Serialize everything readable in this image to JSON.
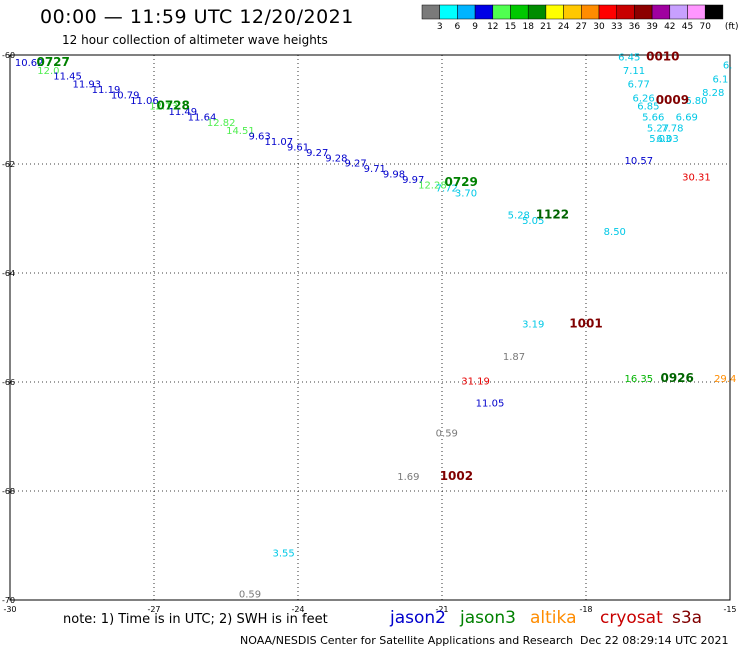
{
  "header": {
    "title": "00:00 — 11:59 UTC 12/20/2021",
    "subtitle": "12 hour collection of altimeter wave heights"
  },
  "colorbar": {
    "colors": [
      "#7a7a7a",
      "#00ffff",
      "#00b4ff",
      "#0000e6",
      "#50ff50",
      "#00c800",
      "#008c00",
      "#ffff00",
      "#ffc800",
      "#ff8c00",
      "#ff0000",
      "#c80000",
      "#8c0000",
      "#a000a0",
      "#c8a0ff",
      "#ff96ff",
      "#000000"
    ],
    "labels": [
      "3",
      "6",
      "9",
      "12",
      "15",
      "18",
      "21",
      "24",
      "27",
      "30",
      "33",
      "36",
      "39",
      "42",
      "45",
      "70"
    ],
    "unit": "(ft)"
  },
  "axes": {
    "lon_ticks": [
      "-30",
      "-27",
      "-24",
      "-21",
      "-18",
      "-15"
    ],
    "lat_ticks": [
      "-60",
      "-62",
      "-64",
      "-66",
      "-68",
      "-70"
    ]
  },
  "time_labels": [
    {
      "text": "0727",
      "color": "#008000",
      "lon": -29.1,
      "lat": -60.2
    },
    {
      "text": "0728",
      "color": "#008000",
      "lon": -26.6,
      "lat": -61.0
    },
    {
      "text": "0729",
      "color": "#008000",
      "lon": -20.6,
      "lat": -62.4
    },
    {
      "text": "1122",
      "color": "#006400",
      "lon": -18.7,
      "lat": -63.0
    },
    {
      "text": "0010",
      "color": "#800000",
      "lon": -16.4,
      "lat": -60.1
    },
    {
      "text": "0009",
      "color": "#800000",
      "lon": -16.2,
      "lat": -60.9
    },
    {
      "text": "1001",
      "color": "#800000",
      "lon": -18.0,
      "lat": -65.0
    },
    {
      "text": "0926",
      "color": "#006400",
      "lon": -16.1,
      "lat": -66.0
    },
    {
      "text": "1002",
      "color": "#800000",
      "lon": -20.7,
      "lat": -67.8
    }
  ],
  "swh_values": [
    {
      "text": "10.62",
      "color": "#0000cc",
      "lon": -29.6,
      "lat": -60.2
    },
    {
      "text": "12.0",
      "color": "#50ee50",
      "lon": -29.2,
      "lat": -60.35
    },
    {
      "text": "11.45",
      "color": "#0000cc",
      "lon": -28.8,
      "lat": -60.45
    },
    {
      "text": "11.93",
      "color": "#0000cc",
      "lon": -28.4,
      "lat": -60.6
    },
    {
      "text": "11.19",
      "color": "#0000cc",
      "lon": -28.0,
      "lat": -60.7
    },
    {
      "text": "10.79",
      "color": "#0000cc",
      "lon": -27.6,
      "lat": -60.8
    },
    {
      "text": "11.06",
      "color": "#0000cc",
      "lon": -27.2,
      "lat": -60.9
    },
    {
      "text": "12.13",
      "color": "#50ee50",
      "lon": -26.8,
      "lat": -61.0
    },
    {
      "text": "11.49",
      "color": "#0000cc",
      "lon": -26.4,
      "lat": -61.1
    },
    {
      "text": "11.64",
      "color": "#0000cc",
      "lon": -26.0,
      "lat": -61.2
    },
    {
      "text": "12.82",
      "color": "#50ee50",
      "lon": -25.6,
      "lat": -61.3
    },
    {
      "text": "14.51",
      "color": "#50ee50",
      "lon": -25.2,
      "lat": -61.45
    },
    {
      "text": "9.63",
      "color": "#0000cc",
      "lon": -24.8,
      "lat": -61.55
    },
    {
      "text": "11.07",
      "color": "#0000cc",
      "lon": -24.4,
      "lat": -61.65
    },
    {
      "text": "9.61",
      "color": "#0000cc",
      "lon": -24.0,
      "lat": -61.75
    },
    {
      "text": "9.27",
      "color": "#0000cc",
      "lon": -23.6,
      "lat": -61.85
    },
    {
      "text": "9.28",
      "color": "#0000cc",
      "lon": -23.2,
      "lat": -61.95
    },
    {
      "text": "9.27",
      "color": "#0000cc",
      "lon": -22.8,
      "lat": -62.05
    },
    {
      "text": "9.71",
      "color": "#0000cc",
      "lon": -22.4,
      "lat": -62.15
    },
    {
      "text": "9.98",
      "color": "#0000cc",
      "lon": -22.0,
      "lat": -62.25
    },
    {
      "text": "9.97",
      "color": "#0000cc",
      "lon": -21.6,
      "lat": -62.35
    },
    {
      "text": "12.28",
      "color": "#50ee50",
      "lon": -21.2,
      "lat": -62.45
    },
    {
      "text": "7.72",
      "color": "#00c8e6",
      "lon": -20.9,
      "lat": -62.5
    },
    {
      "text": "3.70",
      "color": "#00c8e6",
      "lon": -20.5,
      "lat": -62.6
    },
    {
      "text": "5.28",
      "color": "#00c8e6",
      "lon": -19.4,
      "lat": -63.0
    },
    {
      "text": "5.05",
      "color": "#00c8e6",
      "lon": -19.1,
      "lat": -63.1
    },
    {
      "text": "8.50",
      "color": "#00c8e6",
      "lon": -17.4,
      "lat": -63.3
    },
    {
      "text": "6.45",
      "color": "#00c8e6",
      "lon": -17.1,
      "lat": -60.1
    },
    {
      "text": "7.11",
      "color": "#00c8e6",
      "lon": -17.0,
      "lat": -60.35
    },
    {
      "text": "6.77",
      "color": "#00c8e6",
      "lon": -16.9,
      "lat": -60.6
    },
    {
      "text": "6.26",
      "color": "#00c8e6",
      "lon": -16.8,
      "lat": -60.85
    },
    {
      "text": "6.85",
      "color": "#00c8e6",
      "lon": -16.7,
      "lat": -61.0
    },
    {
      "text": "5.66",
      "color": "#00c8e6",
      "lon": -16.6,
      "lat": -61.2
    },
    {
      "text": "5.27",
      "color": "#00c8e6",
      "lon": -16.5,
      "lat": -61.4
    },
    {
      "text": "5.03",
      "color": "#00c8e6",
      "lon": -16.45,
      "lat": -61.6
    },
    {
      "text": "6.03",
      "color": "#00c8e6",
      "lon": -16.3,
      "lat": -61.6
    },
    {
      "text": "7.78",
      "color": "#00c8e6",
      "lon": -16.2,
      "lat": -61.4
    },
    {
      "text": "6.69",
      "color": "#00c8e6",
      "lon": -15.9,
      "lat": -61.2
    },
    {
      "text": "6.80",
      "color": "#00c8e6",
      "lon": -15.7,
      "lat": -60.9
    },
    {
      "text": "8.28",
      "color": "#00c8e6",
      "lon": -15.35,
      "lat": -60.75
    },
    {
      "text": "6.1",
      "color": "#00c8e6",
      "lon": -15.2,
      "lat": -60.5
    },
    {
      "text": "6.",
      "color": "#00c8e6",
      "lon": -15.05,
      "lat": -60.25
    },
    {
      "text": "10.57",
      "color": "#0000cc",
      "lon": -16.9,
      "lat": -62.0
    },
    {
      "text": "30.31",
      "color": "#e60000",
      "lon": -15.7,
      "lat": -62.3
    },
    {
      "text": "3.19",
      "color": "#00c8e6",
      "lon": -19.1,
      "lat": -65.0
    },
    {
      "text": "1.87",
      "color": "#7a7a7a",
      "lon": -19.5,
      "lat": -65.6
    },
    {
      "text": "31.19",
      "color": "#e60000",
      "lon": -20.3,
      "lat": -66.05
    },
    {
      "text": "11.05",
      "color": "#0000cc",
      "lon": -20.0,
      "lat": -66.45
    },
    {
      "text": "0.59",
      "color": "#7a7a7a",
      "lon": -20.9,
      "lat": -67.0
    },
    {
      "text": "1.69",
      "color": "#7a7a7a",
      "lon": -21.7,
      "lat": -67.8
    },
    {
      "text": "3.55",
      "color": "#00c8e6",
      "lon": -24.3,
      "lat": -69.2
    },
    {
      "text": "0.59",
      "color": "#7a7a7a",
      "lon": -25.0,
      "lat": -69.95
    },
    {
      "text": "16.35",
      "color": "#00b400",
      "lon": -16.9,
      "lat": -66.0
    },
    {
      "text": "29.4",
      "color": "#ff8c00",
      "lon": -15.1,
      "lat": -66.0
    }
  ],
  "legend": {
    "note": "note: 1) Time is in UTC; 2) SWH is in feet",
    "satellites": [
      {
        "name": "jason2",
        "color": "#0000cc"
      },
      {
        "name": "jason3",
        "color": "#008000"
      },
      {
        "name": "altika",
        "color": "#ff8c00"
      },
      {
        "name": "cryosat",
        "color": "#c80000"
      },
      {
        "name": "s3a",
        "color": "#800000"
      }
    ]
  },
  "footer": {
    "credit": "NOAA/NESDIS Center for Satellite Applications and Research",
    "timestamp": "Dec 22 08:29:14 UTC 2021"
  }
}
